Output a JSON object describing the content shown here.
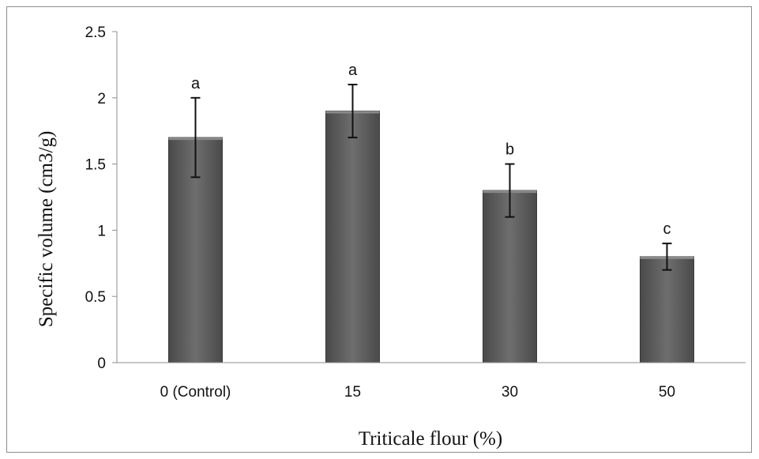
{
  "chart_data": {
    "type": "bar",
    "title": "",
    "xlabel": "Triticale  flour (%)",
    "ylabel": "Specific volume (cm3/g)",
    "categories": [
      "0 (Control)",
      "15",
      "30",
      "50"
    ],
    "values": [
      1.7,
      1.9,
      1.3,
      0.8
    ],
    "error": [
      0.3,
      0.2,
      0.2,
      0.1
    ],
    "significance_letters": [
      "a",
      "a",
      "b",
      "c"
    ],
    "ylim": [
      0,
      2.5
    ],
    "yticks": [
      "0",
      "0.5",
      "1",
      "1.5",
      "2",
      "2.5"
    ],
    "ytick_values": [
      0,
      0.5,
      1,
      1.5,
      2,
      2.5
    ],
    "grid": false,
    "legend": "none",
    "colors": {
      "bar": "#5a5a5a",
      "bar_highlight": "#8a8a8a",
      "error_bar": "#111111",
      "axis": "#8c8c8c"
    }
  }
}
